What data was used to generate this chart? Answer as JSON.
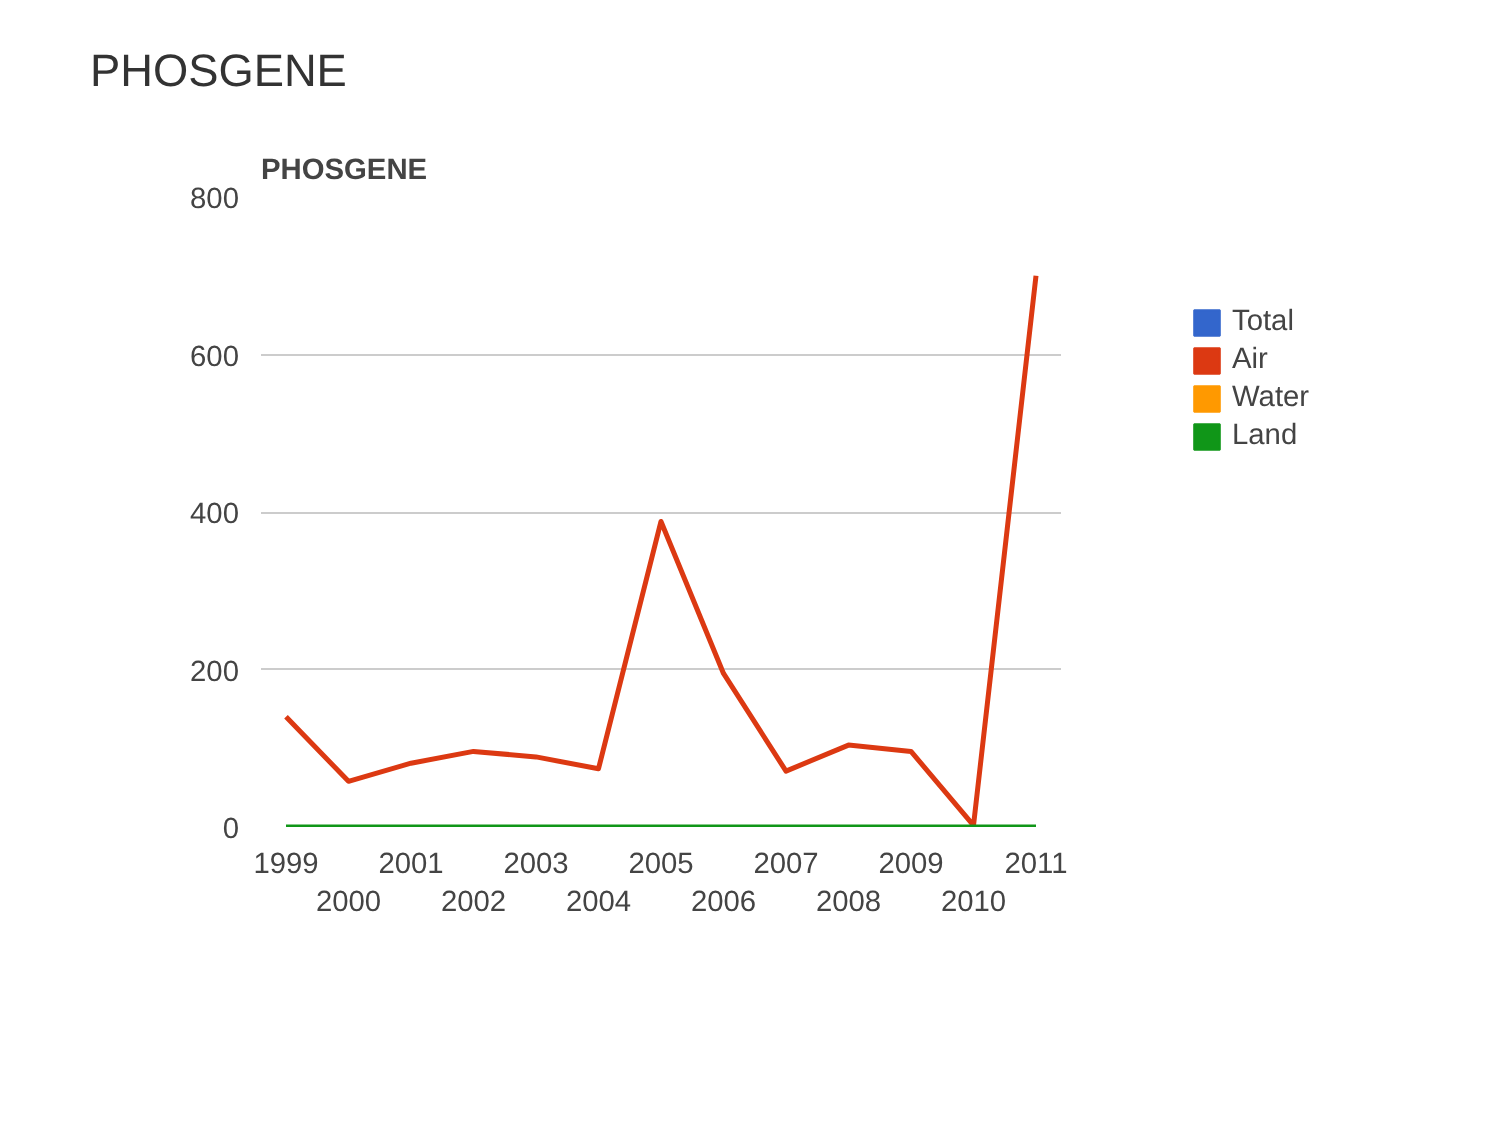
{
  "chart_data": {
    "type": "line",
    "title": "PHOSGENE",
    "subtitle": "PHOSGENE",
    "categories": [
      "1999",
      "2000",
      "2001",
      "2002",
      "2003",
      "2004",
      "2005",
      "2006",
      "2007",
      "2008",
      "2009",
      "2010",
      "2011"
    ],
    "series": [
      {
        "name": "Total",
        "color": "#3366cc",
        "values": [
          null,
          null,
          null,
          null,
          null,
          null,
          null,
          null,
          null,
          null,
          null,
          null,
          null
        ]
      },
      {
        "name": "Air",
        "color": "#dc3912",
        "values": [
          140,
          58,
          81,
          96,
          89,
          74,
          388,
          195,
          71,
          104,
          96,
          2,
          700
        ]
      },
      {
        "name": "Water",
        "color": "#ff9900",
        "values": [
          null,
          null,
          null,
          null,
          null,
          null,
          null,
          null,
          null,
          null,
          null,
          null,
          null
        ]
      },
      {
        "name": "Land",
        "color": "#109618",
        "values": [
          0,
          0,
          0,
          0,
          0,
          0,
          0,
          0,
          0,
          0,
          0,
          0,
          0
        ]
      }
    ],
    "ylim": [
      0,
      800
    ],
    "yticks": [
      0,
      200,
      400,
      600,
      800
    ],
    "grid": "y",
    "legend": "right",
    "marker": "none",
    "line_style": "solid"
  }
}
